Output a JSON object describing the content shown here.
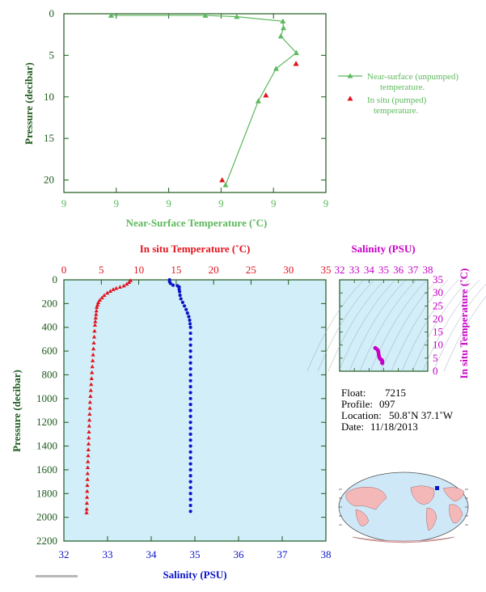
{
  "colors": {
    "near_surface": "#5cb85c",
    "insitu_red": "#e0141e",
    "salinity_blue": "#0a14c8",
    "magenta": "#c800c8",
    "axis_green": "#1e5a1e",
    "panel_fill": "#d2eef8",
    "tick_green": "#2f7a2f"
  },
  "chart_data": [
    {
      "type": "line",
      "xlabel": "Near-Surface Temperature (˚C)",
      "ylabel": "Pressure (decibar)",
      "x_tick_labels": [
        "9",
        "9",
        "9",
        "9",
        "9",
        "9"
      ],
      "y_ticks": [
        0,
        5,
        10,
        15,
        20
      ],
      "ylim": [
        0,
        21.5
      ],
      "y_inverted": true,
      "legend": {
        "placement": "right",
        "entries": [
          {
            "label_line1": "Near-surface (unpumped)",
            "label_line2": "temperature.",
            "marker": "line-triangle",
            "color": "#5cb85c"
          },
          {
            "label_line1": "In situ (pumped)",
            "label_line2": "temperature.",
            "marker": "triangle",
            "color": "#e0141e"
          }
        ]
      },
      "series": [
        {
          "name": "Near-surface (unpumped) temperature.",
          "points": [
            {
              "x": 0.18,
              "y": 0.2
            },
            {
              "x": 0.54,
              "y": 0.2
            },
            {
              "x": 0.66,
              "y": 0.35
            },
            {
              "x": 0.836,
              "y": 0.9
            },
            {
              "x": 0.838,
              "y": 1.7
            },
            {
              "x": 0.828,
              "y": 2.7
            },
            {
              "x": 0.887,
              "y": 4.7
            },
            {
              "x": 0.81,
              "y": 6.6
            },
            {
              "x": 0.742,
              "y": 10.5
            },
            {
              "x": 0.617,
              "y": 20.6
            }
          ]
        },
        {
          "name": "In situ (pumped) temperature.",
          "points": [
            {
              "x": 0.886,
              "y": 6.0
            },
            {
              "x": 0.771,
              "y": 9.8
            },
            {
              "x": 0.604,
              "y": 20.0
            }
          ]
        }
      ]
    },
    {
      "type": "line",
      "title_top": "In situ Temperature (˚C)",
      "xlabel": "Salinity (PSU)",
      "ylabel": "Pressure (decibar)",
      "temp_ticks": [
        0,
        5,
        10,
        15,
        20,
        25,
        30,
        35
      ],
      "temp_range": [
        0,
        35
      ],
      "sal_ticks": [
        32,
        33,
        34,
        35,
        36,
        37,
        38
      ],
      "sal_range": [
        32,
        38
      ],
      "y_ticks": [
        0,
        200,
        400,
        600,
        800,
        1000,
        1200,
        1400,
        1600,
        1800,
        2000,
        2200
      ],
      "ylim": [
        0,
        2200
      ],
      "y_inverted": true,
      "series": [
        {
          "name": "In situ Temperature",
          "variable": "temperature",
          "points": [
            [
              8.9,
              5
            ],
            [
              8.7,
              20
            ],
            [
              8.4,
              35
            ],
            [
              8.0,
              50
            ],
            [
              7.5,
              60
            ],
            [
              7.0,
              70
            ],
            [
              6.6,
              80
            ],
            [
              6.2,
              95
            ],
            [
              5.8,
              110
            ],
            [
              5.4,
              130
            ],
            [
              5.1,
              150
            ],
            [
              4.8,
              170
            ],
            [
              4.6,
              190
            ],
            [
              4.5,
              210
            ],
            [
              4.4,
              230
            ],
            [
              4.35,
              260
            ],
            [
              4.3,
              290
            ],
            [
              4.25,
              320
            ],
            [
              4.2,
              350
            ],
            [
              4.15,
              380
            ],
            [
              4.1,
              430
            ],
            [
              4.05,
              480
            ],
            [
              4.0,
              530
            ],
            [
              3.95,
              580
            ],
            [
              3.9,
              630
            ],
            [
              3.85,
              680
            ],
            [
              3.8,
              730
            ],
            [
              3.75,
              780
            ],
            [
              3.7,
              830
            ],
            [
              3.65,
              880
            ],
            [
              3.6,
              930
            ],
            [
              3.55,
              980
            ],
            [
              3.5,
              1030
            ],
            [
              3.47,
              1080
            ],
            [
              3.44,
              1130
            ],
            [
              3.41,
              1180
            ],
            [
              3.38,
              1230
            ],
            [
              3.35,
              1280
            ],
            [
              3.32,
              1330
            ],
            [
              3.3,
              1380
            ],
            [
              3.27,
              1430
            ],
            [
              3.24,
              1480
            ],
            [
              3.21,
              1530
            ],
            [
              3.19,
              1580
            ],
            [
              3.17,
              1630
            ],
            [
              3.15,
              1680
            ],
            [
              3.13,
              1730
            ],
            [
              3.11,
              1780
            ],
            [
              3.09,
              1830
            ],
            [
              3.07,
              1880
            ],
            [
              3.05,
              1930
            ],
            [
              3.03,
              1960
            ]
          ]
        },
        {
          "name": "Salinity",
          "variable": "salinity",
          "points": [
            [
              34.42,
              0
            ],
            [
              34.42,
              15
            ],
            [
              34.44,
              30
            ],
            [
              34.5,
              45
            ],
            [
              34.6,
              50
            ],
            [
              34.64,
              60
            ],
            [
              34.64,
              80
            ],
            [
              34.65,
              100
            ],
            [
              34.66,
              130
            ],
            [
              34.68,
              160
            ],
            [
              34.72,
              190
            ],
            [
              34.76,
              220
            ],
            [
              34.8,
              250
            ],
            [
              34.83,
              280
            ],
            [
              34.86,
              310
            ],
            [
              34.88,
              340
            ],
            [
              34.89,
              370
            ],
            [
              34.9,
              400
            ],
            [
              34.9,
              450
            ],
            [
              34.9,
              500
            ],
            [
              34.9,
              550
            ],
            [
              34.9,
              600
            ],
            [
              34.9,
              650
            ],
            [
              34.9,
              700
            ],
            [
              34.9,
              750
            ],
            [
              34.9,
              800
            ],
            [
              34.9,
              850
            ],
            [
              34.9,
              900
            ],
            [
              34.9,
              950
            ],
            [
              34.9,
              1000
            ],
            [
              34.9,
              1050
            ],
            [
              34.9,
              1100
            ],
            [
              34.9,
              1150
            ],
            [
              34.9,
              1200
            ],
            [
              34.9,
              1250
            ],
            [
              34.9,
              1300
            ],
            [
              34.9,
              1350
            ],
            [
              34.9,
              1400
            ],
            [
              34.9,
              1450
            ],
            [
              34.9,
              1500
            ],
            [
              34.9,
              1550
            ],
            [
              34.9,
              1600
            ],
            [
              34.9,
              1650
            ],
            [
              34.9,
              1700
            ],
            [
              34.9,
              1750
            ],
            [
              34.9,
              1800
            ],
            [
              34.9,
              1850
            ],
            [
              34.9,
              1900
            ],
            [
              34.9,
              1950
            ]
          ]
        }
      ]
    },
    {
      "type": "scatter",
      "title_top": "Salinity (PSU)",
      "ylabel": "In situ Temperature (˚C)",
      "x_ticks": [
        32,
        33,
        34,
        35,
        36,
        37,
        38
      ],
      "xlim": [
        32,
        38
      ],
      "y_ticks": [
        0,
        5,
        10,
        15,
        20,
        25,
        30,
        35
      ],
      "ylim": [
        0,
        35
      ],
      "series": [
        {
          "name": "T-S",
          "points": [
            [
              34.42,
              8.9
            ],
            [
              34.5,
              8.6
            ],
            [
              34.6,
              8.0
            ],
            [
              34.64,
              7.3
            ],
            [
              34.66,
              6.4
            ],
            [
              34.68,
              5.8
            ],
            [
              34.72,
              5.1
            ],
            [
              34.76,
              4.7
            ],
            [
              34.8,
              4.5
            ],
            [
              34.84,
              4.4
            ],
            [
              34.88,
              4.2
            ],
            [
              34.9,
              4.0
            ],
            [
              34.9,
              3.8
            ],
            [
              34.9,
              3.6
            ],
            [
              34.9,
              3.4
            ],
            [
              34.9,
              3.2
            ],
            [
              34.9,
              3.05
            ]
          ]
        }
      ]
    }
  ],
  "float_info": {
    "float_label": "Float:",
    "float_value": "7215",
    "profile_label": "Profile:",
    "profile_value": "097",
    "location_label": "Location:",
    "location_value": "50.8˚N  37.1˚W",
    "date_label": "Date:",
    "date_value": "11/18/2013"
  },
  "map": {
    "marker_lat": 50.8,
    "marker_lon": -37.1
  }
}
